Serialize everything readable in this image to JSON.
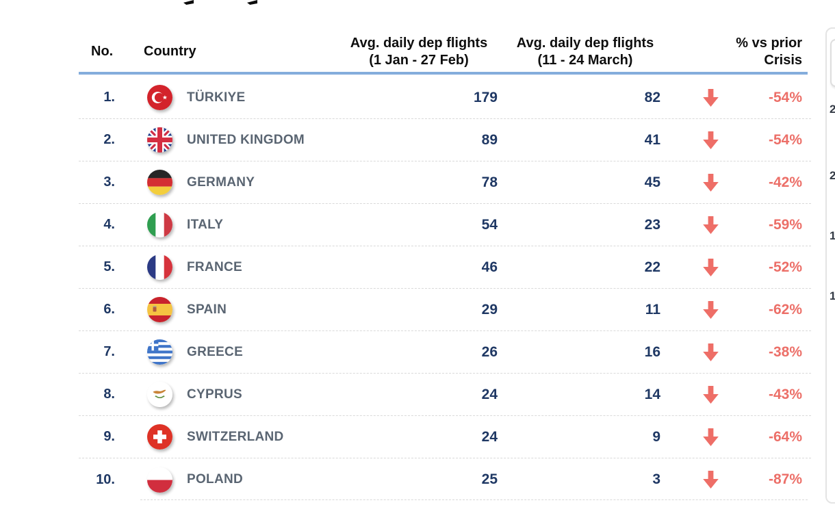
{
  "chart_data": {
    "type": "table",
    "columns": {
      "no": "No.",
      "country": "Country",
      "period1_line1": "Avg. daily dep flights",
      "period1_line2": "(1 Jan - 27 Feb)",
      "period2_line1": "Avg. daily dep flights",
      "period2_line2": "(11 - 24 March)",
      "change_line1": "% vs prior",
      "change_line2": "Crisis"
    },
    "rows": [
      {
        "no": "1.",
        "flag": "turkiye",
        "country": "TÜRKIYE",
        "period1": "179",
        "period2": "82",
        "change": "-54%",
        "direction": "down"
      },
      {
        "no": "2.",
        "flag": "united-kingdom",
        "country": "UNITED KINGDOM",
        "period1": "89",
        "period2": "41",
        "change": "-54%",
        "direction": "down"
      },
      {
        "no": "3.",
        "flag": "germany",
        "country": "GERMANY",
        "period1": "78",
        "period2": "45",
        "change": "-42%",
        "direction": "down"
      },
      {
        "no": "4.",
        "flag": "italy",
        "country": "ITALY",
        "period1": "54",
        "period2": "23",
        "change": "-59%",
        "direction": "down"
      },
      {
        "no": "5.",
        "flag": "france",
        "country": "FRANCE",
        "period1": "46",
        "period2": "22",
        "change": "-52%",
        "direction": "down"
      },
      {
        "no": "6.",
        "flag": "spain",
        "country": "SPAIN",
        "period1": "29",
        "period2": "11",
        "change": "-62%",
        "direction": "down"
      },
      {
        "no": "7.",
        "flag": "greece",
        "country": "GREECE",
        "period1": "26",
        "period2": "16",
        "change": "-38%",
        "direction": "down"
      },
      {
        "no": "8.",
        "flag": "cyprus",
        "country": "CYPRUS",
        "period1": "24",
        "period2": "14",
        "change": "-43%",
        "direction": "down"
      },
      {
        "no": "9.",
        "flag": "switzerland",
        "country": "SWITZERLAND",
        "period1": "24",
        "period2": "9",
        "change": "-64%",
        "direction": "down"
      },
      {
        "no": "10.",
        "flag": "poland",
        "country": "POLAND",
        "period1": "25",
        "period2": "3",
        "change": "-87%",
        "direction": "down"
      }
    ]
  },
  "right_panel": {
    "axis_fragments": [
      "2",
      "2",
      "1",
      "1"
    ]
  },
  "colors": {
    "value_navy": "#1F3864",
    "country_gray": "#5A6572",
    "change_red": "#EC6F68",
    "header_underline_blue": "#84ADDC"
  }
}
